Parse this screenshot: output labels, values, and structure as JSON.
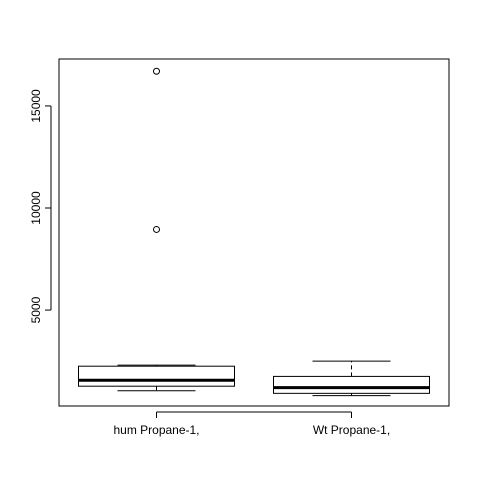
{
  "chart_data": {
    "type": "boxplot",
    "title": "",
    "xlabel": "",
    "ylabel": "",
    "ylim": [
      300,
      17300
    ],
    "y_ticks": [
      5000,
      10000,
      15000
    ],
    "y_tick_labels": [
      "5000",
      "10000",
      "15000"
    ],
    "categories": [
      "hum Propane-1,",
      "Wt Propane-1,"
    ],
    "boxes": [
      {
        "name": "hum Propane-1,",
        "whisker_low": 1050,
        "q1": 1270,
        "median": 1560,
        "q3": 2250,
        "whisker_high": 2300,
        "outliers": [
          8950,
          16700
        ]
      },
      {
        "name": "Wt Propane-1,",
        "whisker_low": 810,
        "q1": 920,
        "median": 1200,
        "q3": 1750,
        "whisker_high": 2500,
        "outliers": []
      }
    ],
    "grid": false,
    "legend": "none"
  }
}
